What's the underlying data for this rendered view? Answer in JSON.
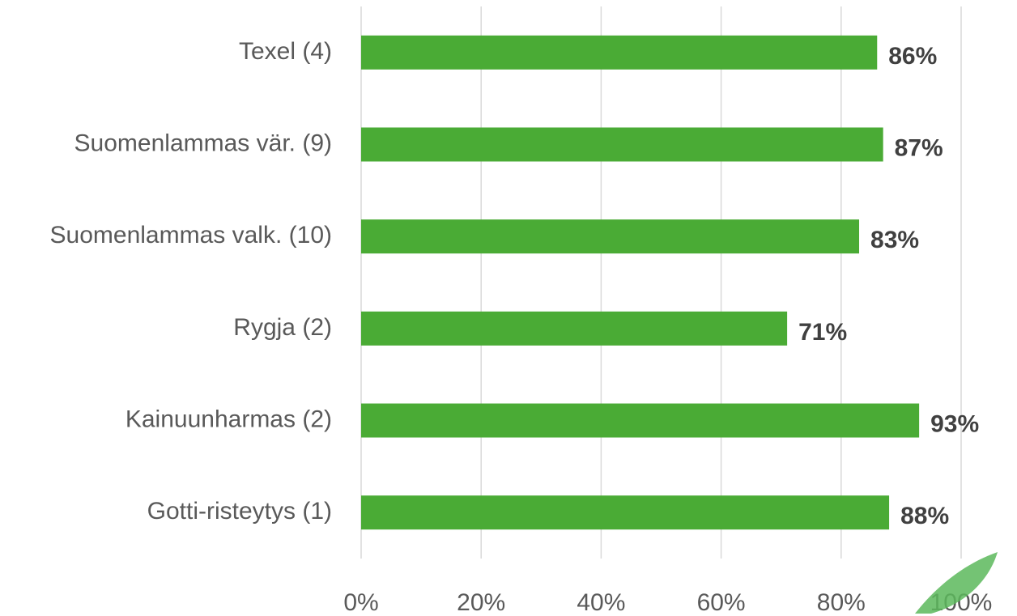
{
  "chart_data": {
    "type": "bar",
    "orientation": "horizontal",
    "categories": [
      "Texel (4)",
      "Suomenlammas vär. (9)",
      "Suomenlammas valk. (10)",
      "Rygja (2)",
      "Kainuunharmas (2)",
      "Gotti-risteytys (1)"
    ],
    "values": [
      86,
      87,
      83,
      71,
      93,
      88
    ],
    "value_labels": [
      "86%",
      "87%",
      "83%",
      "71%",
      "93%",
      "88%"
    ],
    "color": "#4aab35",
    "xlim": [
      0,
      100
    ],
    "xticks": [
      {
        "value": 0,
        "label": "0%"
      },
      {
        "value": 20,
        "label": "20%"
      },
      {
        "value": 40,
        "label": "40%"
      },
      {
        "value": 60,
        "label": "60%"
      },
      {
        "value": 80,
        "label": "80%"
      },
      {
        "value": 100,
        "label": "100%"
      }
    ],
    "grid": true
  }
}
